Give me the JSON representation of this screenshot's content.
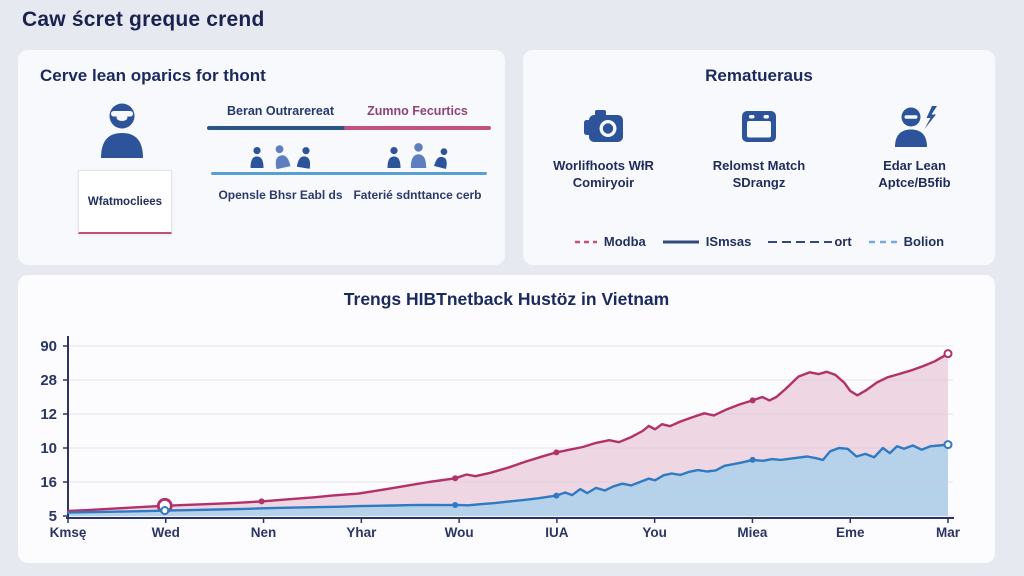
{
  "page": {
    "title": "Caw ścret greque crend"
  },
  "left_panel": {
    "title": "Cerve lean oparics for thont",
    "avatar_card_label": "Wfatmocliees",
    "columns": [
      {
        "header": "Beran Outrarereat",
        "header_color": "#23386e",
        "bar_color": "#2b5585",
        "sub_bar_color": "#58a0d4",
        "caption": "Opensle Bhsr Eabl ds"
      },
      {
        "header": "Zumno Fecurtics",
        "header_color": "#8f4376",
        "bar_color": "#c2537f",
        "sub_bar_color": "#58a0d4",
        "caption": "Faterié sdnttance cerb"
      }
    ]
  },
  "right_panel": {
    "title": "Rematueraus",
    "items": [
      {
        "icon": "camera-icon",
        "line1": "Worlifhoots WłR",
        "line2": "Comiryoir"
      },
      {
        "icon": "calendar-icon",
        "line1": "Relomst Match",
        "line2": "SDrangz"
      },
      {
        "icon": "person-bolt-icon",
        "line1": "Edar Lean",
        "line2": "Aptce/B5fib"
      }
    ],
    "legend": [
      {
        "label": "Modba",
        "color": "#c05177",
        "dash": "5,4"
      },
      {
        "label": "ISmsas",
        "color": "#32497e",
        "dash": ""
      },
      {
        "label": "ort",
        "color": "#32497e",
        "dash": "9,5"
      },
      {
        "label": "Bolion",
        "color": "#74aadc",
        "dash": "6,5"
      }
    ]
  },
  "chart_data": {
    "type": "area",
    "title": "Trengs HIBTnetback Hustöz in Vietnam",
    "xlabel": "",
    "ylabel": "",
    "x_labels": [
      "Kmsę",
      "Wed",
      "Nen",
      "Yhar",
      "Wou",
      "IUA",
      "You",
      "Miea",
      "Eme",
      "Mar"
    ],
    "y_tick_labels": [
      "90",
      "28",
      "12",
      "10",
      "16",
      "5"
    ],
    "ylim": [
      0,
      100
    ],
    "grid": true,
    "legend_position": "top-right-panel",
    "series": [
      {
        "name": "Modba",
        "line_color": "#b23169",
        "fill_color": "#eed6e2",
        "points": [
          [
            0,
            3
          ],
          [
            2,
            3.4
          ],
          [
            4,
            4
          ],
          [
            6,
            4.6
          ],
          [
            8,
            5.2
          ],
          [
            11,
            6
          ],
          [
            13,
            6.4
          ],
          [
            16,
            7
          ],
          [
            19,
            7.7
          ],
          [
            22,
            8.6
          ],
          [
            25,
            9.8
          ],
          [
            28,
            11
          ],
          [
            30,
            12
          ],
          [
            33,
            13.2
          ],
          [
            35,
            14.8
          ],
          [
            37,
            16.5
          ],
          [
            39,
            18.3
          ],
          [
            41,
            20
          ],
          [
            43,
            21.4
          ],
          [
            44,
            22.2
          ],
          [
            45.3,
            24.4
          ],
          [
            46.3,
            23.4
          ],
          [
            48,
            25.4
          ],
          [
            50,
            28.4
          ],
          [
            52,
            32
          ],
          [
            54,
            35.2
          ],
          [
            55.5,
            37.4
          ],
          [
            57,
            39
          ],
          [
            58.5,
            40.6
          ],
          [
            60,
            43
          ],
          [
            61.5,
            44.6
          ],
          [
            62.6,
            43.4
          ],
          [
            64,
            46.4
          ],
          [
            65.3,
            50
          ],
          [
            66,
            53
          ],
          [
            66.7,
            51
          ],
          [
            67.5,
            54
          ],
          [
            68.4,
            52.8
          ],
          [
            69.6,
            55.6
          ],
          [
            71,
            58.2
          ],
          [
            72.3,
            60.4
          ],
          [
            73.4,
            59.2
          ],
          [
            74.9,
            62.8
          ],
          [
            76.3,
            65.6
          ],
          [
            77.8,
            68
          ],
          [
            78.9,
            70
          ],
          [
            79.7,
            68
          ],
          [
            80.5,
            70
          ],
          [
            81.6,
            75
          ],
          [
            83,
            82
          ],
          [
            84.3,
            84.5
          ],
          [
            85.3,
            83.5
          ],
          [
            86.2,
            84.8
          ],
          [
            87.2,
            83
          ],
          [
            88.2,
            78.5
          ],
          [
            88.9,
            73.5
          ],
          [
            89.7,
            71
          ],
          [
            90.7,
            74
          ],
          [
            91.9,
            78.5
          ],
          [
            93.1,
            81.5
          ],
          [
            94.4,
            83.5
          ],
          [
            95.7,
            85.5
          ],
          [
            97.1,
            88
          ],
          [
            98.5,
            91
          ],
          [
            100,
            95.5
          ]
        ],
        "markers": [
          [
            11,
            6,
            "ring-large"
          ],
          [
            22,
            8.6,
            "dot"
          ],
          [
            44,
            22.2,
            "dot"
          ],
          [
            55.5,
            37.4,
            "dot"
          ],
          [
            77.8,
            68,
            "dot"
          ],
          [
            100,
            95.5,
            "ring"
          ]
        ]
      },
      {
        "name": "ISmsas",
        "line_color": "#2f7ac3",
        "fill_color": "#b6d1ea",
        "points": [
          [
            0,
            2
          ],
          [
            3,
            2.3
          ],
          [
            6,
            2.6
          ],
          [
            9,
            2.9
          ],
          [
            11,
            3.2
          ],
          [
            14,
            3.5
          ],
          [
            17,
            3.8
          ],
          [
            20,
            4.2
          ],
          [
            22,
            4.5
          ],
          [
            25,
            4.9
          ],
          [
            28,
            5.2
          ],
          [
            31,
            5.5
          ],
          [
            33,
            5.8
          ],
          [
            35,
            6
          ],
          [
            37,
            6.2
          ],
          [
            39,
            6.4
          ],
          [
            41,
            6.5
          ],
          [
            43,
            6.4
          ],
          [
            44,
            6.5
          ],
          [
            45.5,
            6.3
          ],
          [
            47,
            7
          ],
          [
            48.5,
            7.6
          ],
          [
            50,
            8.5
          ],
          [
            52,
            9.5
          ],
          [
            53.5,
            10.5
          ],
          [
            55.5,
            12
          ],
          [
            56.5,
            13.8
          ],
          [
            57.3,
            12.3
          ],
          [
            58.2,
            15.8
          ],
          [
            59,
            13.5
          ],
          [
            60,
            16.5
          ],
          [
            61,
            15
          ],
          [
            62,
            17.5
          ],
          [
            63,
            19
          ],
          [
            64,
            18
          ],
          [
            65,
            20
          ],
          [
            66,
            22
          ],
          [
            66.7,
            21
          ],
          [
            67.7,
            24
          ],
          [
            68.6,
            25
          ],
          [
            69.6,
            24.2
          ],
          [
            70.6,
            26
          ],
          [
            71.6,
            27
          ],
          [
            72.6,
            26.2
          ],
          [
            73.6,
            26.8
          ],
          [
            74.6,
            29.5
          ],
          [
            75.6,
            30.5
          ],
          [
            76.6,
            31.5
          ],
          [
            77.8,
            33
          ],
          [
            79,
            32.5
          ],
          [
            80,
            33.5
          ],
          [
            81,
            33
          ],
          [
            82.5,
            34
          ],
          [
            84,
            35
          ],
          [
            85,
            34
          ],
          [
            85.8,
            33
          ],
          [
            86.6,
            38
          ],
          [
            87.6,
            40
          ],
          [
            88.6,
            39.5
          ],
          [
            89.6,
            35
          ],
          [
            90.6,
            36.5
          ],
          [
            91.6,
            34.5
          ],
          [
            92.6,
            40
          ],
          [
            93.4,
            37
          ],
          [
            94.2,
            41
          ],
          [
            95,
            39.5
          ],
          [
            96,
            41.5
          ],
          [
            97,
            39
          ],
          [
            98,
            41
          ],
          [
            99,
            41.5
          ],
          [
            100,
            42
          ]
        ],
        "markers": [
          [
            11,
            3.2,
            "ring"
          ],
          [
            44,
            6.5,
            "dot"
          ],
          [
            55.5,
            12,
            "dot"
          ],
          [
            77.8,
            33,
            "dot"
          ],
          [
            100,
            42,
            "ring"
          ]
        ]
      }
    ]
  },
  "colors": {
    "icon_blue": "#2d549b",
    "axis": "#2a3563",
    "grid_line": "#cfd0dd"
  }
}
